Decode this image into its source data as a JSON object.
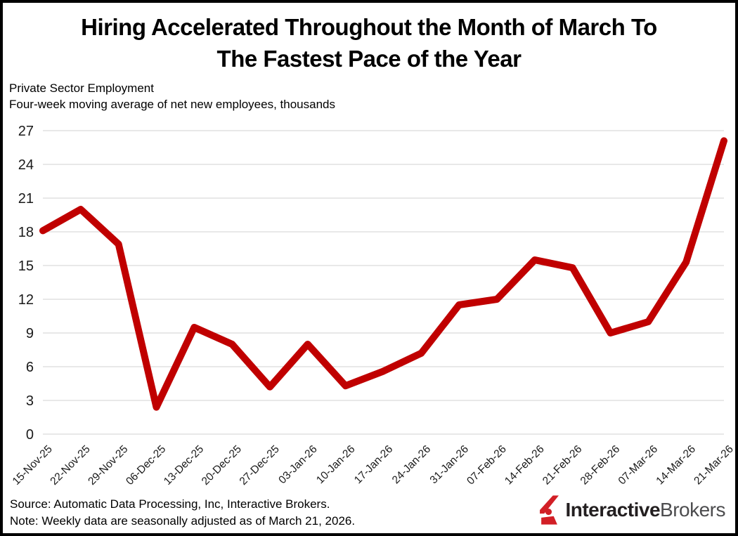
{
  "header": {
    "title_line1": "Hiring Accelerated Throughout the Month of March To",
    "title_line2": "The Fastest Pace of the Year",
    "subtitle_line1": "Private Sector Employment",
    "subtitle_line2": "Four-week moving average of net new employees, thousands"
  },
  "footer": {
    "source": "Source: Automatic Data Processing, Inc, Interactive Brokers.",
    "note": "Note: Weekly data are seasonally adjusted as of March 21, 2026.",
    "brand_bold": "Interactive",
    "brand_regular": "Brokers"
  },
  "colors": {
    "line": "#c00000",
    "gridline": "#d9d9d9",
    "tick_text": "#1a1a1a",
    "logo_red": "#d21f26",
    "brand_bold_text": "#231f20",
    "brand_regular_text": "#4d4d4f"
  },
  "chart_data": {
    "type": "line",
    "title": "Hiring Accelerated Throughout the Month of March To The Fastest Pace of the Year",
    "xlabel": "",
    "ylabel": "Four-week moving average of net new employees, thousands",
    "ylim": [
      0,
      27
    ],
    "ytick_step": 3,
    "grid": "horizontal",
    "legend": "none",
    "line_color": "#c00000",
    "line_width": 10,
    "x": [
      "15-Nov-25",
      "22-Nov-25",
      "29-Nov-25",
      "06-Dec-25",
      "13-Dec-25",
      "20-Dec-25",
      "27-Dec-25",
      "03-Jan-26",
      "10-Jan-26",
      "17-Jan-26",
      "24-Jan-26",
      "31-Jan-26",
      "07-Feb-26",
      "14-Feb-26",
      "21-Feb-26",
      "28-Feb-26",
      "07-Mar-26",
      "14-Mar-26",
      "21-Mar-26"
    ],
    "series": [
      {
        "name": "Private Sector Employment (four-week moving average, thousands)",
        "values": [
          18.1,
          20.0,
          16.9,
          2.4,
          9.5,
          8.0,
          4.2,
          8.0,
          4.3,
          5.6,
          7.2,
          11.5,
          12.0,
          15.5,
          14.8,
          9.0,
          10.0,
          15.3,
          26.1
        ]
      }
    ]
  }
}
